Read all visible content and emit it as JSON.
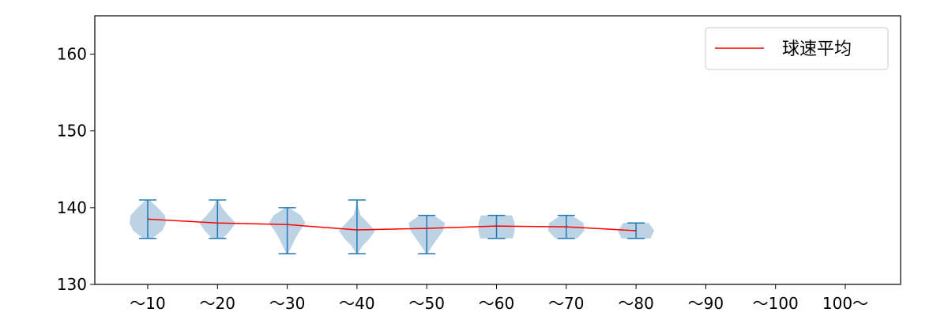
{
  "chart_data": {
    "type": "violin",
    "title": "",
    "xlabel": "",
    "ylabel": "",
    "categories": [
      "～10",
      "～20",
      "～30",
      "～40",
      "～50",
      "～60",
      "～70",
      "～80",
      "～90",
      "～100",
      "100～"
    ],
    "ylim": [
      130,
      165
    ],
    "yticks": [
      130,
      140,
      150,
      160
    ],
    "grid": false,
    "legend": {
      "position": "top-right",
      "entries": [
        {
          "label": "球速平均",
          "color": "#ff0000"
        }
      ]
    },
    "series": [
      {
        "name": "球速平均",
        "type": "line",
        "color": "#ff0000",
        "values": [
          138.5,
          138.0,
          137.8,
          137.1,
          137.3,
          137.6,
          137.5,
          137.0,
          null,
          null,
          null
        ]
      }
    ],
    "distributions": [
      {
        "category": "～10",
        "min": 136,
        "max": 141,
        "shape": [
          [
            136,
            0.25
          ],
          [
            137,
            0.8
          ],
          [
            138,
            1.0
          ],
          [
            139,
            0.95
          ],
          [
            140,
            0.55
          ],
          [
            141,
            0.1
          ]
        ]
      },
      {
        "category": "～20",
        "min": 136,
        "max": 141,
        "shape": [
          [
            136,
            0.3
          ],
          [
            137,
            0.7
          ],
          [
            138,
            1.0
          ],
          [
            139,
            0.6
          ],
          [
            140,
            0.25
          ],
          [
            141,
            0.05
          ]
        ]
      },
      {
        "category": "～30",
        "min": 134,
        "max": 140,
        "shape": [
          [
            134,
            0.05
          ],
          [
            135,
            0.25
          ],
          [
            136,
            0.45
          ],
          [
            137,
            0.7
          ],
          [
            138,
            1.0
          ],
          [
            139,
            0.75
          ],
          [
            140,
            0.1
          ]
        ]
      },
      {
        "category": "～40",
        "min": 134,
        "max": 141,
        "shape": [
          [
            134,
            0.05
          ],
          [
            135,
            0.3
          ],
          [
            136,
            0.7
          ],
          [
            137,
            1.0
          ],
          [
            138,
            0.6
          ],
          [
            139,
            0.2
          ],
          [
            140,
            0.08
          ],
          [
            141,
            0.02
          ]
        ]
      },
      {
        "category": "～50",
        "min": 134,
        "max": 139,
        "shape": [
          [
            134,
            0.05
          ],
          [
            135,
            0.3
          ],
          [
            136,
            0.6
          ],
          [
            137,
            0.9
          ],
          [
            138,
            1.0
          ],
          [
            139,
            0.4
          ]
        ]
      },
      {
        "category": "～60",
        "min": 136,
        "max": 139,
        "shape": [
          [
            136,
            0.9
          ],
          [
            137,
            1.0
          ],
          [
            138,
            1.0
          ],
          [
            139,
            0.85
          ]
        ]
      },
      {
        "category": "～70",
        "min": 136,
        "max": 139,
        "shape": [
          [
            136,
            0.6
          ],
          [
            137,
            1.0
          ],
          [
            138,
            0.95
          ],
          [
            139,
            0.3
          ]
        ]
      },
      {
        "category": "～80",
        "min": 136,
        "max": 138,
        "shape": [
          [
            136,
            0.8
          ],
          [
            137,
            1.0
          ],
          [
            138,
            0.7
          ]
        ]
      }
    ],
    "colors": {
      "violin_fill": "#aac8df",
      "violin_line": "#1f77b4",
      "axis": "#000000"
    }
  }
}
